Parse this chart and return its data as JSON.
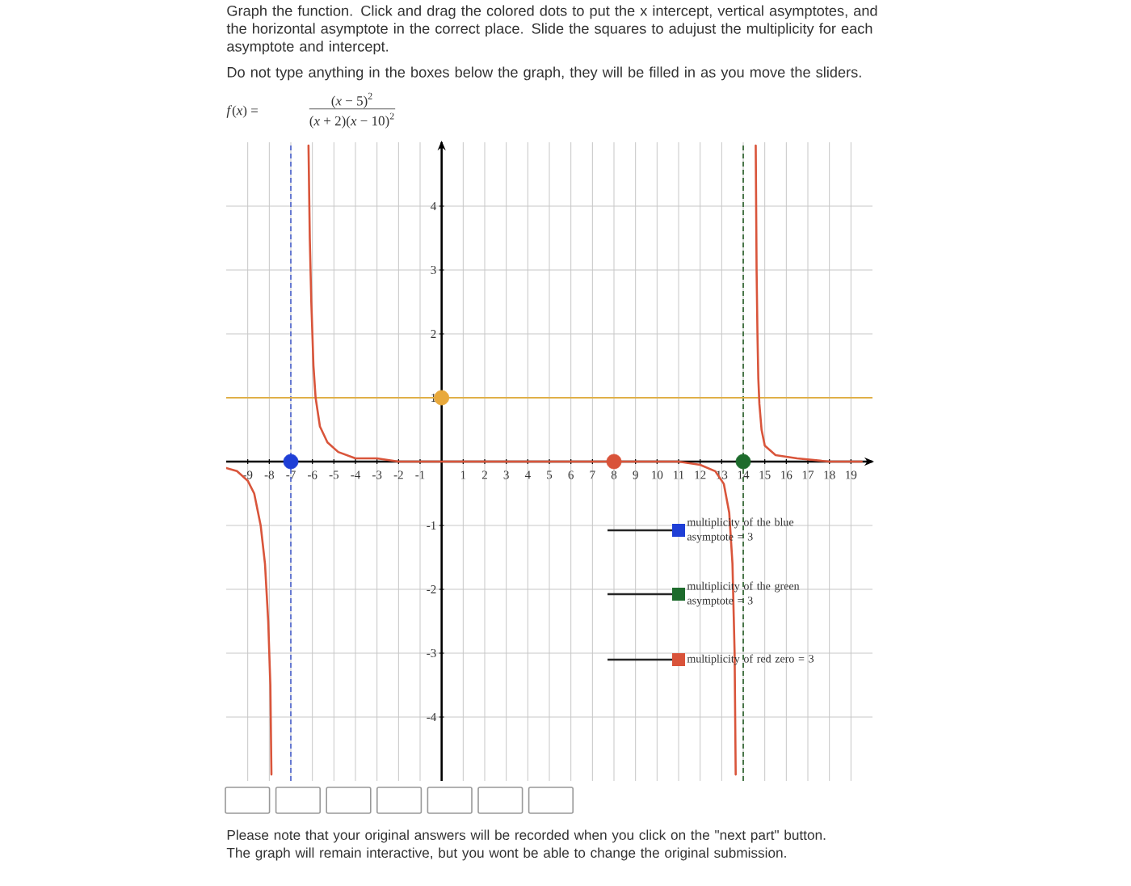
{
  "chart_data": {
    "type": "line",
    "title": "Graph the function. Click and drag the colored dots to put the x intercept, vertical asymptotes, and the horizontal asymptote in the correct place. Slide the squares to adujust the multiplicity for each asymptote and intercept.",
    "subtitle": "Do not type anything in the boxes below the graph, they will be filled in as you move the sliders.",
    "annotations": [
      "*f*(*x*) =",
      "(*x* − 5)$^{2}$",
      "(*x* + 2)(*x* − 10)$^{2}$",
      "multiplicity of the blue asymptote = 3",
      "multiplicity of the green asymptote = 3",
      "multiplicity of red zero = 3",
      "Please note that your original answers will be recorded when you click on the \"next part\" button. The graph will remain interactive, but you wont be able to change the original submission."
    ],
    "xlim": [
      -10,
      20
    ],
    "ylim": [
      -5,
      5
    ],
    "xticks": [
      -9,
      -8,
      -7,
      -6,
      -5,
      -4,
      -3,
      -2,
      -1,
      1,
      2,
      3,
      4,
      5,
      6,
      7,
      8,
      9,
      10,
      11,
      12,
      13,
      14,
      15,
      16,
      17,
      18,
      19
    ],
    "yticks": [
      -4,
      -3,
      -2,
      -1,
      1,
      2,
      3,
      4
    ],
    "grid": true,
    "series": [
      {
        "color": "#d9553b",
        "line_style": "solid",
        "x": [
          -10,
          -9.5,
          -9,
          -8.7,
          -8.4,
          -8.2,
          -8.05,
          -7.95,
          -7.9,
          -7,
          -6.18,
          -6.12,
          -6.05,
          -5.95,
          -5.85,
          -5.65,
          -5.3,
          -4.8,
          -4,
          -3,
          -2,
          0,
          4,
          8,
          11,
          12,
          12.7,
          13.1,
          13.35,
          13.5,
          13.6,
          13.65,
          14,
          14.58,
          14.62,
          14.66,
          14.7,
          14.75,
          14.85,
          15,
          15.5,
          16.5,
          18,
          19.5
        ],
        "values": [
          -0.1,
          -0.15,
          -0.3,
          -0.5,
          -1.0,
          -1.6,
          -2.5,
          -3.5,
          -4.9,
          null,
          4.95,
          3.5,
          2.5,
          1.5,
          1.0,
          0.55,
          0.3,
          0.15,
          0.05,
          0.05,
          0,
          0,
          0,
          0,
          0,
          -0.05,
          -0.15,
          -0.35,
          -0.8,
          -1.6,
          -3.0,
          -4.9,
          null,
          4.95,
          3.0,
          2.0,
          1.3,
          0.9,
          0.5,
          0.25,
          0.1,
          0.05,
          0,
          0
        ]
      },
      {
        "type": "scatter",
        "color": "#1f3fd6",
        "x": [
          -7
        ],
        "values": [
          0
        ]
      },
      {
        "type": "scatter",
        "color": "#e8a93c",
        "x": [
          0
        ],
        "values": [
          1
        ]
      },
      {
        "type": "scatter",
        "color": "#d9533a",
        "x": [
          8
        ],
        "values": [
          0
        ]
      },
      {
        "type": "scatter",
        "color": "#1d6b2c",
        "x": [
          14
        ],
        "values": [
          0
        ]
      }
    ],
    "ref_lines": [
      {
        "axis": "x",
        "value": -7,
        "color": "#5a6fd0",
        "line_style": "dashed"
      },
      {
        "axis": "x",
        "value": 14,
        "color": "#3a6b3a",
        "line_style": "dashed"
      },
      {
        "axis": "y",
        "value": 1,
        "color": "#e0b048",
        "line_style": "solid"
      }
    ]
  }
}
